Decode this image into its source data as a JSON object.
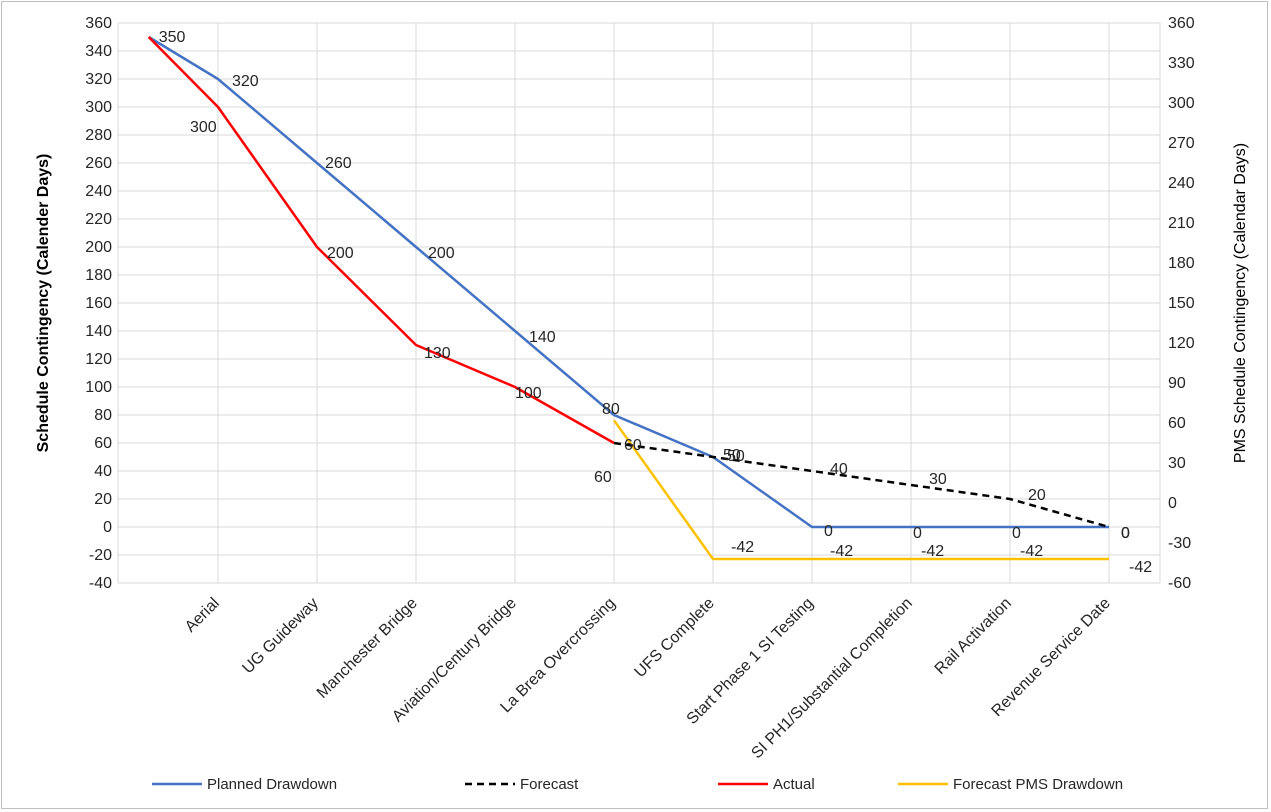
{
  "chart_data": {
    "type": "line",
    "title": "",
    "xlabel": "",
    "ylabel": "Schedule Contingency (Calender Days)",
    "y2label": "PMS Schedule Contingency (Calendar Days)",
    "ylim": [
      -40,
      360
    ],
    "ytick_step": 20,
    "y2lim": [
      -60,
      360
    ],
    "y2tick_step": 30,
    "grid": true,
    "legend_position": "bottom",
    "categories": [
      "Aerial",
      "UG Guideway",
      "Manchester Bridge",
      "Aviation/Century Bridge",
      "La Brea Overcrossing",
      "UFS Complete",
      "Start Phase 1 SI Testing",
      "SI PH1/Substantial Completion",
      "Rail Activation",
      "Revenue Service Date"
    ],
    "series": [
      {
        "name": "Planned Drawdown",
        "color": "#4472c4",
        "dash": "solid",
        "axis": "left",
        "points": [
          [
            -0.7,
            350
          ],
          [
            0.0,
            320
          ],
          [
            1.0,
            260
          ],
          [
            2.0,
            200
          ],
          [
            3.0,
            140
          ],
          [
            4.0,
            80
          ],
          [
            5.0,
            50
          ],
          [
            6.0,
            0
          ],
          [
            7.0,
            0
          ],
          [
            8.0,
            0
          ],
          [
            9.0,
            0
          ]
        ],
        "labels": [
          "350",
          "320",
          "260",
          "200",
          "140",
          "80",
          "50",
          "0",
          "0",
          "0",
          "0"
        ]
      },
      {
        "name": "Forecast",
        "color": "#000000",
        "dash": "dashed",
        "axis": "left",
        "points": [
          [
            4.0,
            60
          ],
          [
            5.0,
            50
          ],
          [
            6.0,
            40
          ],
          [
            7.0,
            30
          ],
          [
            8.0,
            20
          ],
          [
            9.0,
            0
          ]
        ],
        "labels": [
          "60",
          "50",
          "40",
          "30",
          "20",
          "0"
        ]
      },
      {
        "name": "Actual",
        "color": "#ff0000",
        "dash": "solid",
        "axis": "left",
        "points": [
          [
            -0.7,
            350
          ],
          [
            0.0,
            300
          ],
          [
            1.0,
            200
          ],
          [
            2.0,
            130
          ],
          [
            3.0,
            100
          ],
          [
            4.0,
            60
          ]
        ],
        "labels": [
          "",
          "300",
          "200",
          "130",
          "100",
          "60"
        ]
      },
      {
        "name": "Forecast PMS Drawdown",
        "color": "#ffc000",
        "dash": "solid",
        "axis": "right",
        "points": [
          [
            4.0,
            62
          ],
          [
            5.0,
            -42
          ],
          [
            6.0,
            -42
          ],
          [
            7.0,
            -42
          ],
          [
            8.0,
            -42
          ],
          [
            9.0,
            -42
          ]
        ],
        "labels": [
          "",
          "-42",
          "-42",
          "-42",
          "-42",
          "-42"
        ]
      }
    ]
  }
}
